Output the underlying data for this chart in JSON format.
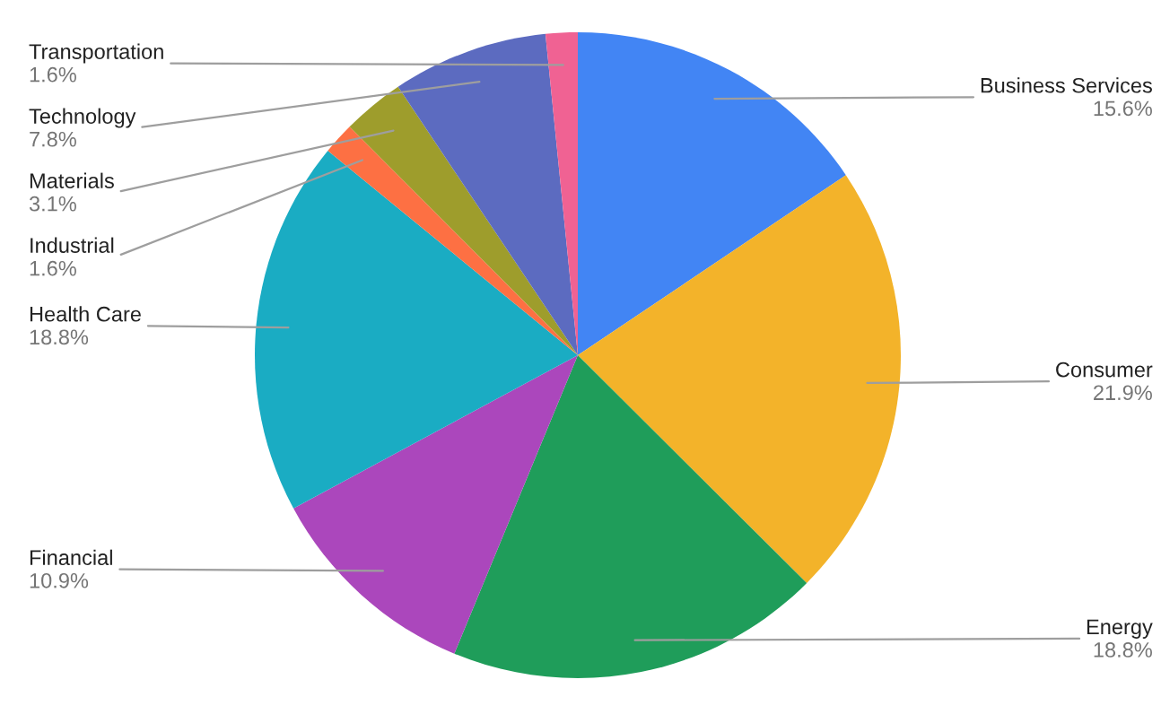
{
  "chart_data": {
    "type": "pie",
    "categories": [
      "Business Services",
      "Consumer",
      "Energy",
      "Financial",
      "Health Care",
      "Industrial",
      "Materials",
      "Technology",
      "Transportation"
    ],
    "values": [
      15.6,
      21.9,
      18.8,
      10.9,
      18.8,
      1.6,
      3.1,
      7.8,
      1.6
    ],
    "colors": [
      "#4285f4",
      "#f3b32a",
      "#1f9d5a",
      "#ab47bc",
      "#1aacc3",
      "#fd7043",
      "#9e9d2c",
      "#5c6bc0",
      "#f06293"
    ],
    "value_labels": [
      "15.6%",
      "21.9%",
      "18.8%",
      "10.9%",
      "18.8%",
      "1.6%",
      "3.1%",
      "7.8%",
      "1.6%"
    ]
  }
}
